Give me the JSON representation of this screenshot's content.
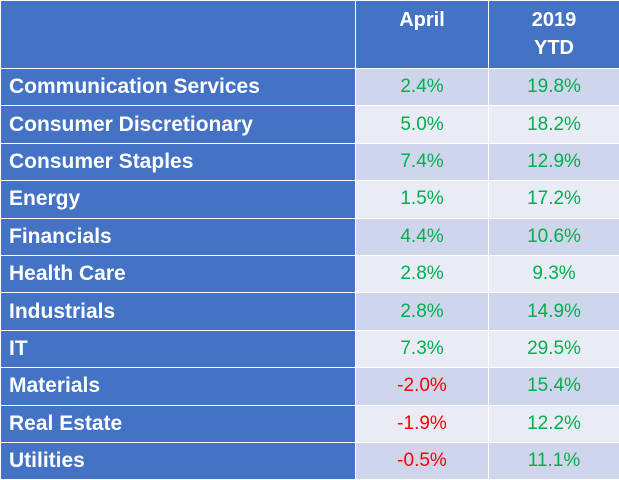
{
  "header": {
    "sector_label": "",
    "april_label": "April",
    "ytd_label_line1": "2019",
    "ytd_label_line2": "YTD"
  },
  "rows": [
    {
      "sector": "Communication Services",
      "april": "2.4%",
      "ytd": "19.8%"
    },
    {
      "sector": "Consumer Discretionary",
      "april": "5.0%",
      "ytd": "18.2%"
    },
    {
      "sector": "Consumer Staples",
      "april": "7.4%",
      "ytd": "12.9%"
    },
    {
      "sector": "Energy",
      "april": "1.5%",
      "ytd": "17.2%"
    },
    {
      "sector": "Financials",
      "april": "4.4%",
      "ytd": "10.6%"
    },
    {
      "sector": "Health Care",
      "april": "2.8%",
      "ytd": "9.3%"
    },
    {
      "sector": "Industrials",
      "april": "2.8%",
      "ytd": "14.9%"
    },
    {
      "sector": "IT",
      "april": "7.3%",
      "ytd": "29.5%"
    },
    {
      "sector": "Materials",
      "april": "-2.0%",
      "ytd": "15.4%"
    },
    {
      "sector": "Real Estate",
      "april": "-1.9%",
      "ytd": "12.2%"
    },
    {
      "sector": "Utilities",
      "april": "-0.5%",
      "ytd": "11.1%"
    }
  ],
  "colors": {
    "header_bg": "#4472c4",
    "row_band_dark": "#cfd5ea",
    "row_band_light": "#e9ebf5",
    "positive": "#00b050",
    "negative": "#ff0000"
  }
}
